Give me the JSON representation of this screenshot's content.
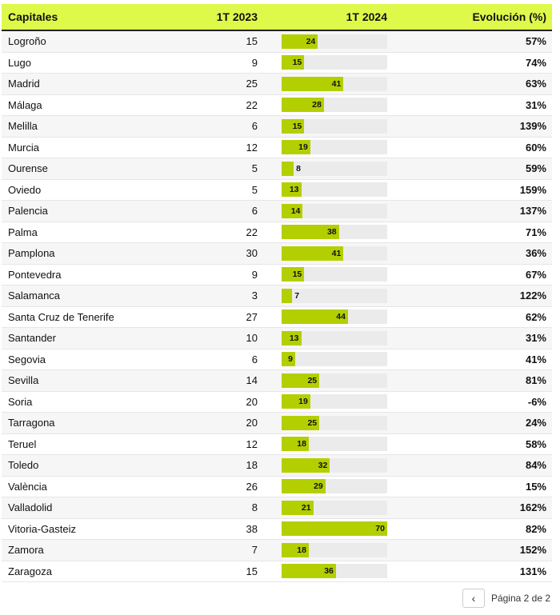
{
  "header": {
    "col1": "Capitales",
    "col2": "1T 2023",
    "col3": "1T 2024",
    "col4": "Evolución (%)"
  },
  "colors": {
    "header_bg": "#dff94a",
    "bar": "#b3cf00",
    "track": "#ebebeb"
  },
  "bar_max": 70,
  "rows": [
    {
      "city": "Logroño",
      "t2023": "15",
      "t2024": 24,
      "evol": "57%"
    },
    {
      "city": "Lugo",
      "t2023": "9",
      "t2024": 15,
      "evol": "74%"
    },
    {
      "city": "Madrid",
      "t2023": "25",
      "t2024": 41,
      "evol": "63%"
    },
    {
      "city": "Málaga",
      "t2023": "22",
      "t2024": 28,
      "evol": "31%"
    },
    {
      "city": "Melilla",
      "t2023": "6",
      "t2024": 15,
      "evol": "139%"
    },
    {
      "city": "Murcia",
      "t2023": "12",
      "t2024": 19,
      "evol": "60%"
    },
    {
      "city": "Ourense",
      "t2023": "5",
      "t2024": 8,
      "evol": "59%"
    },
    {
      "city": "Oviedo",
      "t2023": "5",
      "t2024": 13,
      "evol": "159%"
    },
    {
      "city": "Palencia",
      "t2023": "6",
      "t2024": 14,
      "evol": "137%"
    },
    {
      "city": "Palma",
      "t2023": "22",
      "t2024": 38,
      "evol": "71%"
    },
    {
      "city": "Pamplona",
      "t2023": "30",
      "t2024": 41,
      "evol": "36%"
    },
    {
      "city": "Pontevedra",
      "t2023": "9",
      "t2024": 15,
      "evol": "67%"
    },
    {
      "city": "Salamanca",
      "t2023": "3",
      "t2024": 7,
      "evol": "122%"
    },
    {
      "city": "Santa Cruz de Tenerife",
      "t2023": "27",
      "t2024": 44,
      "evol": "62%"
    },
    {
      "city": "Santander",
      "t2023": "10",
      "t2024": 13,
      "evol": "31%"
    },
    {
      "city": "Segovia",
      "t2023": "6",
      "t2024": 9,
      "evol": "41%"
    },
    {
      "city": "Sevilla",
      "t2023": "14",
      "t2024": 25,
      "evol": "81%"
    },
    {
      "city": "Soria",
      "t2023": "20",
      "t2024": 19,
      "evol": "-6%"
    },
    {
      "city": "Tarragona",
      "t2023": "20",
      "t2024": 25,
      "evol": "24%"
    },
    {
      "city": "Teruel",
      "t2023": "12",
      "t2024": 18,
      "evol": "58%"
    },
    {
      "city": "Toledo",
      "t2023": "18",
      "t2024": 32,
      "evol": "84%"
    },
    {
      "city": "València",
      "t2023": "26",
      "t2024": 29,
      "evol": "15%"
    },
    {
      "city": "Valladolid",
      "t2023": "8",
      "t2024": 21,
      "evol": "162%"
    },
    {
      "city": "Vitoria-Gasteiz",
      "t2023": "38",
      "t2024": 70,
      "evol": "82%"
    },
    {
      "city": "Zamora",
      "t2023": "7",
      "t2024": 18,
      "evol": "152%"
    },
    {
      "city": "Zaragoza",
      "t2023": "15",
      "t2024": 36,
      "evol": "131%"
    }
  ],
  "pagination": {
    "label": "Página 2 de 2",
    "prev_icon": "chevron-left-icon"
  }
}
